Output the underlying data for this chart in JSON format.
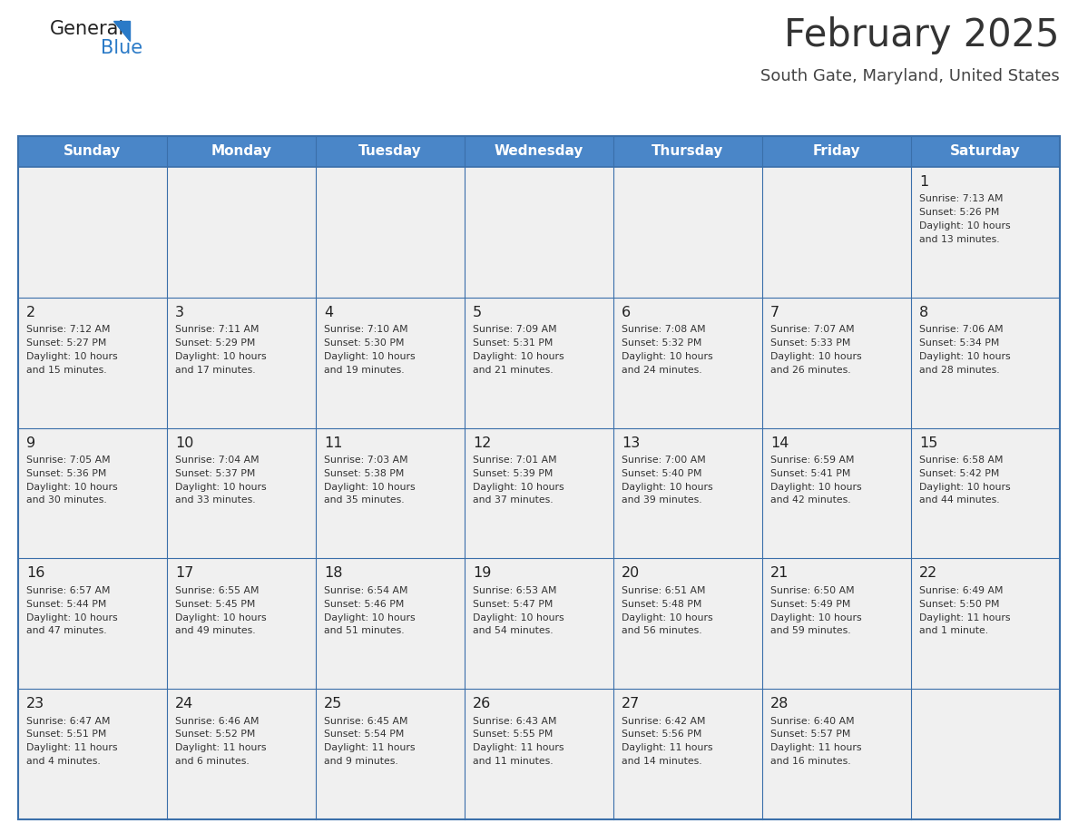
{
  "title": "February 2025",
  "subtitle": "South Gate, Maryland, United States",
  "header_bg_color": "#4a86c8",
  "header_text_color": "#ffffff",
  "cell_bg_color": "#f0f0f0",
  "day_headers": [
    "Sunday",
    "Monday",
    "Tuesday",
    "Wednesday",
    "Thursday",
    "Friday",
    "Saturday"
  ],
  "title_color": "#333333",
  "subtitle_color": "#444444",
  "day_num_color": "#222222",
  "info_color": "#333333",
  "border_color": "#3a6faa",
  "calendar_data": [
    {
      "day": 1,
      "col": 6,
      "row": 0,
      "sunrise": "7:13 AM",
      "sunset": "5:26 PM",
      "daylight_hours": 10,
      "daylight_minutes": 13
    },
    {
      "day": 2,
      "col": 0,
      "row": 1,
      "sunrise": "7:12 AM",
      "sunset": "5:27 PM",
      "daylight_hours": 10,
      "daylight_minutes": 15
    },
    {
      "day": 3,
      "col": 1,
      "row": 1,
      "sunrise": "7:11 AM",
      "sunset": "5:29 PM",
      "daylight_hours": 10,
      "daylight_minutes": 17
    },
    {
      "day": 4,
      "col": 2,
      "row": 1,
      "sunrise": "7:10 AM",
      "sunset": "5:30 PM",
      "daylight_hours": 10,
      "daylight_minutes": 19
    },
    {
      "day": 5,
      "col": 3,
      "row": 1,
      "sunrise": "7:09 AM",
      "sunset": "5:31 PM",
      "daylight_hours": 10,
      "daylight_minutes": 21
    },
    {
      "day": 6,
      "col": 4,
      "row": 1,
      "sunrise": "7:08 AM",
      "sunset": "5:32 PM",
      "daylight_hours": 10,
      "daylight_minutes": 24
    },
    {
      "day": 7,
      "col": 5,
      "row": 1,
      "sunrise": "7:07 AM",
      "sunset": "5:33 PM",
      "daylight_hours": 10,
      "daylight_minutes": 26
    },
    {
      "day": 8,
      "col": 6,
      "row": 1,
      "sunrise": "7:06 AM",
      "sunset": "5:34 PM",
      "daylight_hours": 10,
      "daylight_minutes": 28
    },
    {
      "day": 9,
      "col": 0,
      "row": 2,
      "sunrise": "7:05 AM",
      "sunset": "5:36 PM",
      "daylight_hours": 10,
      "daylight_minutes": 30
    },
    {
      "day": 10,
      "col": 1,
      "row": 2,
      "sunrise": "7:04 AM",
      "sunset": "5:37 PM",
      "daylight_hours": 10,
      "daylight_minutes": 33
    },
    {
      "day": 11,
      "col": 2,
      "row": 2,
      "sunrise": "7:03 AM",
      "sunset": "5:38 PM",
      "daylight_hours": 10,
      "daylight_minutes": 35
    },
    {
      "day": 12,
      "col": 3,
      "row": 2,
      "sunrise": "7:01 AM",
      "sunset": "5:39 PM",
      "daylight_hours": 10,
      "daylight_minutes": 37
    },
    {
      "day": 13,
      "col": 4,
      "row": 2,
      "sunrise": "7:00 AM",
      "sunset": "5:40 PM",
      "daylight_hours": 10,
      "daylight_minutes": 39
    },
    {
      "day": 14,
      "col": 5,
      "row": 2,
      "sunrise": "6:59 AM",
      "sunset": "5:41 PM",
      "daylight_hours": 10,
      "daylight_minutes": 42
    },
    {
      "day": 15,
      "col": 6,
      "row": 2,
      "sunrise": "6:58 AM",
      "sunset": "5:42 PM",
      "daylight_hours": 10,
      "daylight_minutes": 44
    },
    {
      "day": 16,
      "col": 0,
      "row": 3,
      "sunrise": "6:57 AM",
      "sunset": "5:44 PM",
      "daylight_hours": 10,
      "daylight_minutes": 47
    },
    {
      "day": 17,
      "col": 1,
      "row": 3,
      "sunrise": "6:55 AM",
      "sunset": "5:45 PM",
      "daylight_hours": 10,
      "daylight_minutes": 49
    },
    {
      "day": 18,
      "col": 2,
      "row": 3,
      "sunrise": "6:54 AM",
      "sunset": "5:46 PM",
      "daylight_hours": 10,
      "daylight_minutes": 51
    },
    {
      "day": 19,
      "col": 3,
      "row": 3,
      "sunrise": "6:53 AM",
      "sunset": "5:47 PM",
      "daylight_hours": 10,
      "daylight_minutes": 54
    },
    {
      "day": 20,
      "col": 4,
      "row": 3,
      "sunrise": "6:51 AM",
      "sunset": "5:48 PM",
      "daylight_hours": 10,
      "daylight_minutes": 56
    },
    {
      "day": 21,
      "col": 5,
      "row": 3,
      "sunrise": "6:50 AM",
      "sunset": "5:49 PM",
      "daylight_hours": 10,
      "daylight_minutes": 59
    },
    {
      "day": 22,
      "col": 6,
      "row": 3,
      "sunrise": "6:49 AM",
      "sunset": "5:50 PM",
      "daylight_hours": 11,
      "daylight_minutes": 1
    },
    {
      "day": 23,
      "col": 0,
      "row": 4,
      "sunrise": "6:47 AM",
      "sunset": "5:51 PM",
      "daylight_hours": 11,
      "daylight_minutes": 4
    },
    {
      "day": 24,
      "col": 1,
      "row": 4,
      "sunrise": "6:46 AM",
      "sunset": "5:52 PM",
      "daylight_hours": 11,
      "daylight_minutes": 6
    },
    {
      "day": 25,
      "col": 2,
      "row": 4,
      "sunrise": "6:45 AM",
      "sunset": "5:54 PM",
      "daylight_hours": 11,
      "daylight_minutes": 9
    },
    {
      "day": 26,
      "col": 3,
      "row": 4,
      "sunrise": "6:43 AM",
      "sunset": "5:55 PM",
      "daylight_hours": 11,
      "daylight_minutes": 11
    },
    {
      "day": 27,
      "col": 4,
      "row": 4,
      "sunrise": "6:42 AM",
      "sunset": "5:56 PM",
      "daylight_hours": 11,
      "daylight_minutes": 14
    },
    {
      "day": 28,
      "col": 5,
      "row": 4,
      "sunrise": "6:40 AM",
      "sunset": "5:57 PM",
      "daylight_hours": 11,
      "daylight_minutes": 16
    }
  ],
  "num_rows": 5,
  "num_cols": 7,
  "logo_general_color": "#222222",
  "logo_blue_color": "#2a7ac7",
  "logo_triangle_color": "#2a7ac7",
  "fig_width": 11.88,
  "fig_height": 9.18,
  "dpi": 100
}
